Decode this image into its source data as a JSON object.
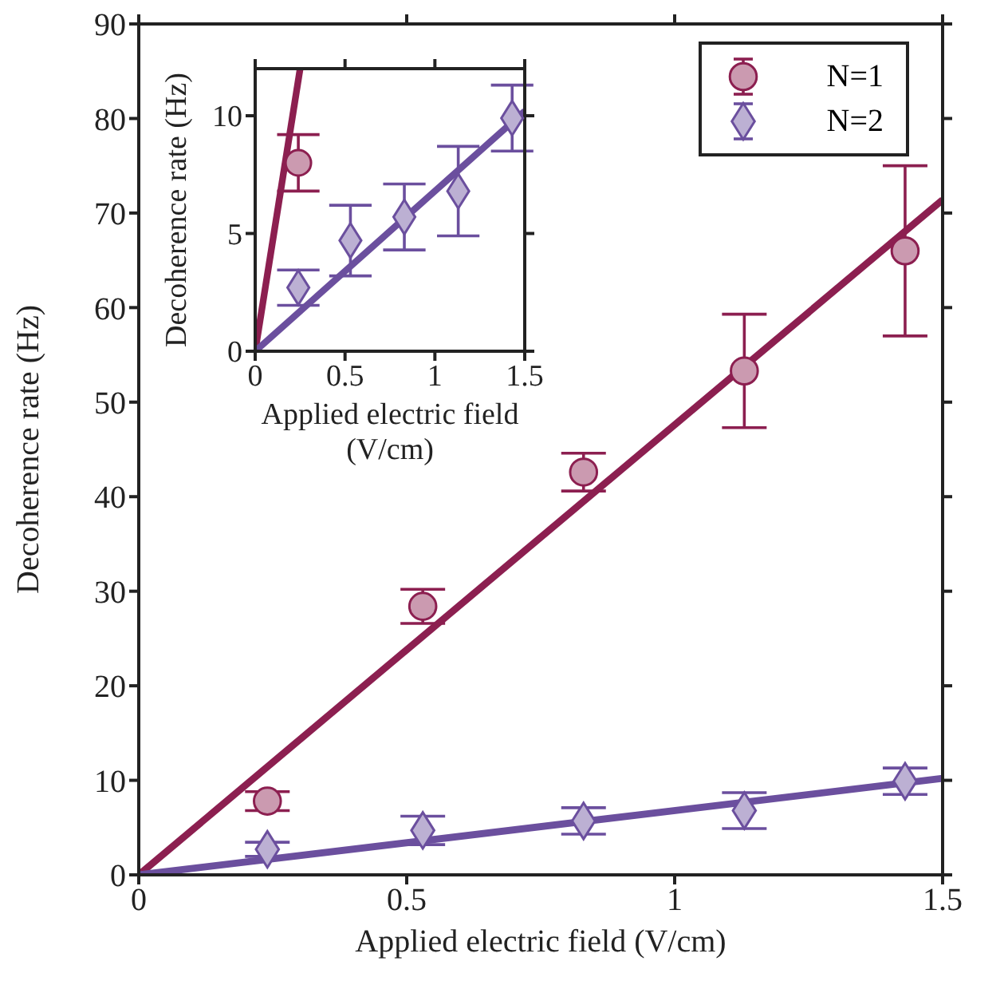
{
  "chart_data": [
    {
      "type": "scatter",
      "xlabel": "Applied electric field (V/cm)",
      "ylabel": "Decoherence rate (Hz)",
      "xlim": [
        0,
        1.5
      ],
      "xticks": [
        0,
        0.5,
        1,
        1.5
      ],
      "ylim": [
        0,
        90
      ],
      "yticks": [
        0,
        10,
        20,
        30,
        40,
        50,
        60,
        70,
        80,
        90
      ],
      "grid": false,
      "legend": "top right",
      "series": [
        {
          "name": "N=1",
          "marker": "circle",
          "color": "#8c1f50",
          "x": [
            0.24,
            0.53,
            0.83,
            1.13,
            1.43
          ],
          "values": [
            7.8,
            28.4,
            42.6,
            53.3,
            66
          ],
          "errors": [
            1,
            1.8,
            2,
            6,
            9
          ]
        },
        {
          "name": "N=2",
          "marker": "diamond",
          "color": "#6b4f9e",
          "x": [
            0.24,
            0.53,
            0.83,
            1.13,
            1.43
          ],
          "values": [
            2.7,
            4.7,
            5.7,
            6.8,
            9.9
          ],
          "errors": [
            0.75,
            1.5,
            1.4,
            1.9,
            1.4
          ]
        },
        {
          "type": "line",
          "color": "#8c1f50",
          "x": [
            0,
            1.5
          ],
          "values": [
            0,
            71.4
          ]
        },
        {
          "type": "line",
          "color": "#6b4f9e",
          "x": [
            0,
            1.5
          ],
          "values": [
            0,
            10.2
          ]
        }
      ]
    },
    {
      "type": "scatter",
      "xlabel": "Applied electric field (V/cm)",
      "ylabel": "Decoherence rate (Hz)",
      "xlim": [
        0,
        1.5
      ],
      "xticks": [
        0,
        0.5,
        1,
        1.5
      ],
      "ylim": [
        0,
        12
      ],
      "yticks": [
        0,
        5,
        10
      ],
      "grid": false,
      "series": [
        {
          "marker": "circle",
          "color": "#8c1f50",
          "x": [
            0.24
          ],
          "values": [
            8
          ],
          "errors": [
            1.2
          ]
        },
        {
          "marker": "diamond",
          "color": "#6b4f9e",
          "x": [
            0.24,
            0.53,
            0.83,
            1.13,
            1.43
          ],
          "values": [
            2.7,
            4.7,
            5.7,
            6.8,
            9.9
          ],
          "errors": [
            0.75,
            1.5,
            1.4,
            1.9,
            1.4
          ]
        },
        {
          "type": "line",
          "color": "#8c1f50",
          "x": [
            0,
            0.25
          ],
          "values": [
            0,
            12
          ]
        },
        {
          "type": "line",
          "color": "#6b4f9e",
          "x": [
            0,
            1.5
          ],
          "values": [
            0,
            10.2
          ]
        }
      ]
    }
  ]
}
